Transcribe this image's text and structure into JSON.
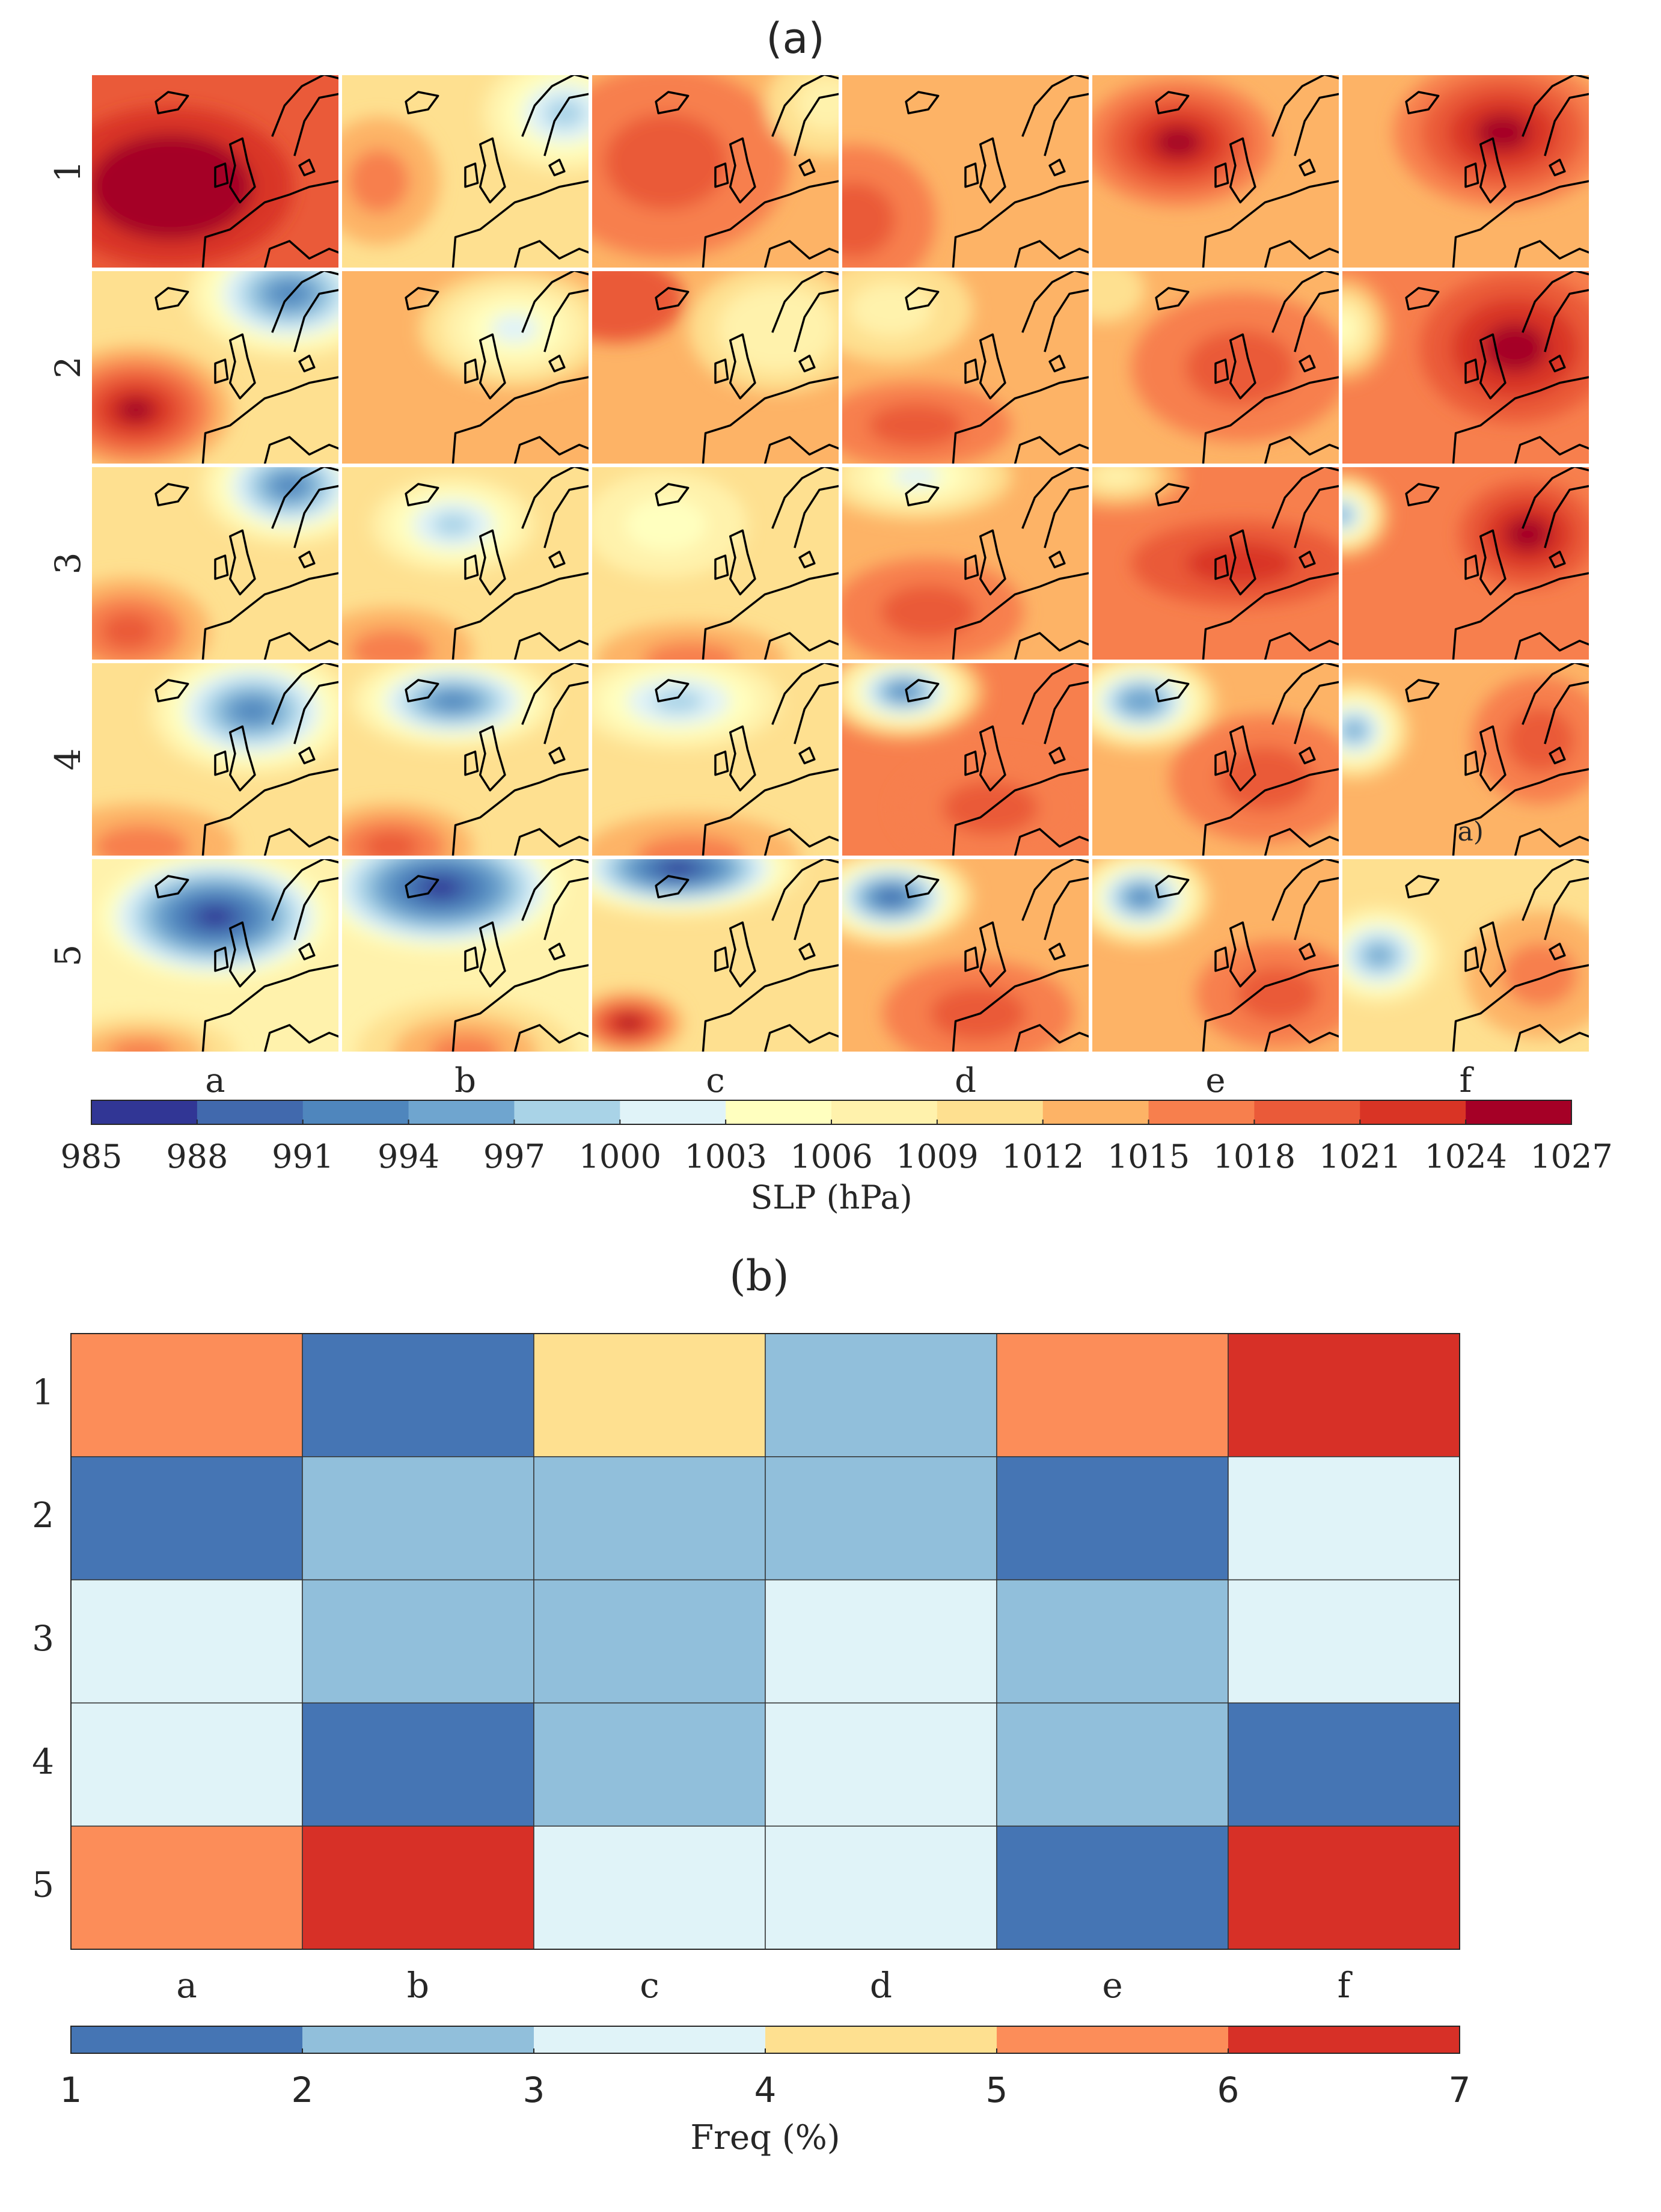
{
  "figure": {
    "panel_a_title": "(a)",
    "panel_b_title": "(b)"
  },
  "chart_data": [
    {
      "type": "heatmap",
      "panel": "(a)",
      "title": "(a)",
      "description_kind": "map-grid",
      "rows": [
        "1",
        "2",
        "3",
        "4",
        "5"
      ],
      "columns": [
        "a",
        "b",
        "c",
        "d",
        "e",
        "f"
      ],
      "annotation": {
        "row": "4",
        "column": "f",
        "text": "a)"
      },
      "cells": [
        [
          {
            "bg": 1018,
            "centers": [
              {
                "p": 1027,
                "cx": 0.32,
                "cy": 0.58,
                "rx": 0.9,
                "ry": 0.75
              }
            ]
          },
          {
            "bg": 1011,
            "centers": [
              {
                "p": 998,
                "cx": 0.9,
                "cy": 0.2,
                "rx": 0.6,
                "ry": 0.55
              },
              {
                "p": 1016,
                "cx": 0.15,
                "cy": 0.55,
                "rx": 0.45,
                "ry": 0.6
              }
            ]
          },
          {
            "bg": 1013,
            "centers": [
              {
                "p": 1020,
                "cx": 0.3,
                "cy": 0.45,
                "rx": 0.9,
                "ry": 0.9
              },
              {
                "p": 1008,
                "cx": 0.95,
                "cy": 0.15,
                "rx": 0.45,
                "ry": 0.5
              }
            ]
          },
          {
            "bg": 1013,
            "centers": [
              {
                "p": 1019,
                "cx": 0.05,
                "cy": 0.75,
                "rx": 0.6,
                "ry": 0.7
              }
            ]
          },
          {
            "bg": 1013,
            "centers": [
              {
                "p": 1024,
                "cx": 0.35,
                "cy": 0.35,
                "rx": 0.7,
                "ry": 0.6
              }
            ]
          },
          {
            "bg": 1013,
            "centers": [
              {
                "p": 1025,
                "cx": 0.65,
                "cy": 0.3,
                "rx": 0.8,
                "ry": 0.7
              }
            ]
          }
        ],
        [
          {
            "bg": 1010,
            "centers": [
              {
                "p": 993,
                "cx": 0.8,
                "cy": 0.12,
                "rx": 0.75,
                "ry": 0.6
              },
              {
                "p": 1025,
                "cx": 0.18,
                "cy": 0.72,
                "rx": 0.7,
                "ry": 0.6
              }
            ]
          },
          {
            "bg": 1012,
            "centers": [
              {
                "p": 1001,
                "cx": 0.7,
                "cy": 0.3,
                "rx": 0.7,
                "ry": 0.55
              }
            ]
          },
          {
            "bg": 1014,
            "centers": [
              {
                "p": 1006,
                "cx": 0.75,
                "cy": 0.3,
                "rx": 0.65,
                "ry": 0.6
              },
              {
                "p": 1018,
                "cx": 0.1,
                "cy": 0.15,
                "rx": 0.5,
                "ry": 0.4
              }
            ]
          },
          {
            "bg": 1013,
            "centers": [
              {
                "p": 1007,
                "cx": 0.2,
                "cy": 0.2,
                "rx": 0.6,
                "ry": 0.5
              },
              {
                "p": 1018,
                "cx": 0.3,
                "cy": 0.8,
                "rx": 0.7,
                "ry": 0.4
              }
            ]
          },
          {
            "bg": 1014,
            "centers": [
              {
                "p": 1020,
                "cx": 0.6,
                "cy": 0.5,
                "rx": 0.8,
                "ry": 0.7
              },
              {
                "p": 1010,
                "cx": 0.05,
                "cy": 0.1,
                "rx": 0.3,
                "ry": 0.3
              }
            ]
          },
          {
            "bg": 1016,
            "centers": [
              {
                "p": 1026,
                "cx": 0.7,
                "cy": 0.4,
                "rx": 0.7,
                "ry": 0.7
              },
              {
                "p": 1004,
                "cx": 0.0,
                "cy": 0.3,
                "rx": 0.35,
                "ry": 0.5
              }
            ]
          }
        ],
        [
          {
            "bg": 1011,
            "centers": [
              {
                "p": 993,
                "cx": 0.8,
                "cy": 0.1,
                "rx": 0.65,
                "ry": 0.55
              },
              {
                "p": 1019,
                "cx": 0.15,
                "cy": 0.85,
                "rx": 0.6,
                "ry": 0.5
              }
            ]
          },
          {
            "bg": 1010,
            "centers": [
              {
                "p": 999,
                "cx": 0.45,
                "cy": 0.3,
                "rx": 0.6,
                "ry": 0.45
              },
              {
                "p": 1016,
                "cx": 0.2,
                "cy": 0.95,
                "rx": 0.6,
                "ry": 0.4
              }
            ]
          },
          {
            "bg": 1009,
            "centers": [
              {
                "p": 1004,
                "cx": 0.3,
                "cy": 0.3,
                "rx": 0.6,
                "ry": 0.5
              },
              {
                "p": 1016,
                "cx": 0.4,
                "cy": 1.0,
                "rx": 0.7,
                "ry": 0.35
              }
            ]
          },
          {
            "bg": 1013,
            "centers": [
              {
                "p": 1002,
                "cx": 0.3,
                "cy": 0.05,
                "rx": 0.7,
                "ry": 0.4
              },
              {
                "p": 1020,
                "cx": 0.35,
                "cy": 0.75,
                "rx": 0.7,
                "ry": 0.5
              }
            ]
          },
          {
            "bg": 1015,
            "centers": [
              {
                "p": 1021,
                "cx": 0.6,
                "cy": 0.5,
                "rx": 0.8,
                "ry": 0.4
              },
              {
                "p": 1007,
                "cx": 0.1,
                "cy": 0.05,
                "rx": 0.5,
                "ry": 0.3
              }
            ]
          },
          {
            "bg": 1015,
            "centers": [
              {
                "p": 1025,
                "cx": 0.75,
                "cy": 0.35,
                "rx": 0.5,
                "ry": 0.5
              },
              {
                "p": 995,
                "cx": 0.0,
                "cy": 0.25,
                "rx": 0.35,
                "ry": 0.4
              }
            ]
          }
        ],
        [
          {
            "bg": 1010,
            "centers": [
              {
                "p": 993,
                "cx": 0.65,
                "cy": 0.25,
                "rx": 0.75,
                "ry": 0.6
              },
              {
                "p": 1016,
                "cx": 0.2,
                "cy": 0.95,
                "rx": 0.7,
                "ry": 0.4
              }
            ]
          },
          {
            "bg": 1010,
            "centers": [
              {
                "p": 992,
                "cx": 0.45,
                "cy": 0.2,
                "rx": 0.75,
                "ry": 0.45
              },
              {
                "p": 1018,
                "cx": 0.2,
                "cy": 0.95,
                "rx": 0.6,
                "ry": 0.4
              }
            ]
          },
          {
            "bg": 1010,
            "centers": [
              {
                "p": 997,
                "cx": 0.35,
                "cy": 0.2,
                "rx": 0.75,
                "ry": 0.45
              },
              {
                "p": 1016,
                "cx": 0.4,
                "cy": 1.0,
                "rx": 0.8,
                "ry": 0.4
              }
            ]
          },
          {
            "bg": 1015,
            "centers": [
              {
                "p": 992,
                "cx": 0.25,
                "cy": 0.15,
                "rx": 0.6,
                "ry": 0.45
              },
              {
                "p": 1020,
                "cx": 0.6,
                "cy": 0.75,
                "rx": 0.7,
                "ry": 0.5
              }
            ]
          },
          {
            "bg": 1014,
            "centers": [
              {
                "p": 994,
                "cx": 0.2,
                "cy": 0.2,
                "rx": 0.55,
                "ry": 0.45
              },
              {
                "p": 1020,
                "cx": 0.7,
                "cy": 0.6,
                "rx": 0.7,
                "ry": 0.6
              }
            ]
          },
          {
            "bg": 1013,
            "centers": [
              {
                "p": 994,
                "cx": 0.05,
                "cy": 0.35,
                "rx": 0.4,
                "ry": 0.45
              },
              {
                "p": 1020,
                "cx": 0.8,
                "cy": 0.4,
                "rx": 0.5,
                "ry": 0.6
              }
            ]
          }
        ],
        [
          {
            "bg": 1008,
            "centers": [
              {
                "p": 987,
                "cx": 0.5,
                "cy": 0.3,
                "rx": 0.85,
                "ry": 0.6
              },
              {
                "p": 1016,
                "cx": 0.2,
                "cy": 1.0,
                "rx": 0.7,
                "ry": 0.35
              }
            ]
          },
          {
            "bg": 1008,
            "centers": [
              {
                "p": 986,
                "cx": 0.4,
                "cy": 0.15,
                "rx": 0.9,
                "ry": 0.6
              },
              {
                "p": 1017,
                "cx": 0.5,
                "cy": 1.0,
                "rx": 0.8,
                "ry": 0.5
              }
            ]
          },
          {
            "bg": 1010,
            "centers": [
              {
                "p": 986,
                "cx": 0.35,
                "cy": 0.05,
                "rx": 0.9,
                "ry": 0.45
              },
              {
                "p": 1025,
                "cx": 0.15,
                "cy": 0.85,
                "rx": 0.4,
                "ry": 0.3
              }
            ]
          },
          {
            "bg": 1013,
            "centers": [
              {
                "p": 988,
                "cx": 0.2,
                "cy": 0.2,
                "rx": 0.6,
                "ry": 0.45
              },
              {
                "p": 1019,
                "cx": 0.55,
                "cy": 0.8,
                "rx": 0.7,
                "ry": 0.5
              }
            ]
          },
          {
            "bg": 1013,
            "centers": [
              {
                "p": 991,
                "cx": 0.2,
                "cy": 0.2,
                "rx": 0.5,
                "ry": 0.45
              },
              {
                "p": 1018,
                "cx": 0.75,
                "cy": 0.7,
                "rx": 0.6,
                "ry": 0.5
              }
            ]
          },
          {
            "bg": 1010,
            "centers": [
              {
                "p": 996,
                "cx": 0.15,
                "cy": 0.5,
                "rx": 0.45,
                "ry": 0.45
              },
              {
                "p": 1015,
                "cx": 0.8,
                "cy": 0.6,
                "rx": 0.55,
                "ry": 0.6
              }
            ]
          }
        ]
      ],
      "colorbar": {
        "label": "SLP (hPa)",
        "ticks": [
          985,
          988,
          991,
          994,
          997,
          1000,
          1003,
          1006,
          1009,
          1012,
          1015,
          1018,
          1021,
          1024,
          1027
        ],
        "colors": [
          "#313695",
          "#4169ad",
          "#4f86bd",
          "#6fa5cf",
          "#a9d3e7",
          "#e0f3f8",
          "#ffffbf",
          "#fff2ac",
          "#fee090",
          "#fdb366",
          "#f77f4d",
          "#ea5a39",
          "#d93425",
          "#a50026"
        ]
      }
    },
    {
      "type": "heatmap",
      "panel": "(b)",
      "title": "(b)",
      "rows": [
        "1",
        "2",
        "3",
        "4",
        "5"
      ],
      "columns": [
        "a",
        "b",
        "c",
        "d",
        "e",
        "f"
      ],
      "values": [
        [
          5.5,
          1.5,
          4.5,
          2.5,
          5.5,
          6.5
        ],
        [
          1.5,
          2.5,
          2.5,
          2.5,
          1.5,
          3.5
        ],
        [
          3.5,
          2.5,
          2.5,
          3.5,
          2.5,
          3.5
        ],
        [
          3.5,
          1.5,
          2.5,
          3.5,
          2.5,
          1.5
        ],
        [
          5.5,
          6.5,
          3.5,
          3.5,
          1.5,
          6.5
        ]
      ],
      "colorbar": {
        "label": "Freq (%)",
        "ticks": [
          1,
          2,
          3,
          4,
          5,
          6,
          7
        ],
        "colors": [
          "#4575b4",
          "#91bfdb",
          "#e0f3f8",
          "#fee090",
          "#fc8d59",
          "#d73027"
        ]
      }
    }
  ]
}
